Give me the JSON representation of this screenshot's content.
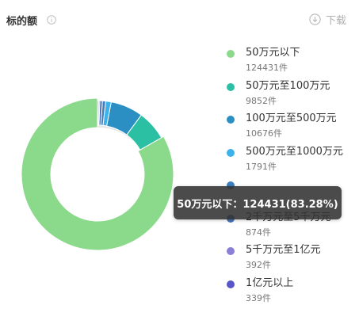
{
  "header": {
    "title": "标的额",
    "download_label": "下载"
  },
  "tooltip": {
    "text": "50万元以下：124431(83.28%)"
  },
  "chart_data": {
    "type": "pie",
    "variant": "donut",
    "title": "标的额",
    "series": [
      {
        "name": "50万元以下",
        "count_label": "124431件",
        "value": 124431,
        "color": "#8bd98b"
      },
      {
        "name": "50万元至100万元",
        "count_label": "9852件",
        "value": 9852,
        "color": "#2bbfa3"
      },
      {
        "name": "100万元至500万元",
        "count_label": "10676件",
        "value": 10676,
        "color": "#2b8fc4"
      },
      {
        "name": "500万元至1000万元",
        "count_label": "1791件",
        "value": 1791,
        "color": "#3bb2ec"
      },
      {
        "name": "",
        "count_label": "",
        "value": 1066,
        "color": "#3d7fc0"
      },
      {
        "name": "2千万元至5千万元",
        "count_label": "874件",
        "value": 874,
        "color": "#4a74b8"
      },
      {
        "name": "5千万元至1亿元",
        "count_label": "392件",
        "value": 392,
        "color": "#8a7fd6"
      },
      {
        "name": "1亿元以上",
        "count_label": "339件",
        "value": 339,
        "color": "#5656c8"
      }
    ],
    "highlighted_index": 0,
    "legend_position": "right"
  }
}
